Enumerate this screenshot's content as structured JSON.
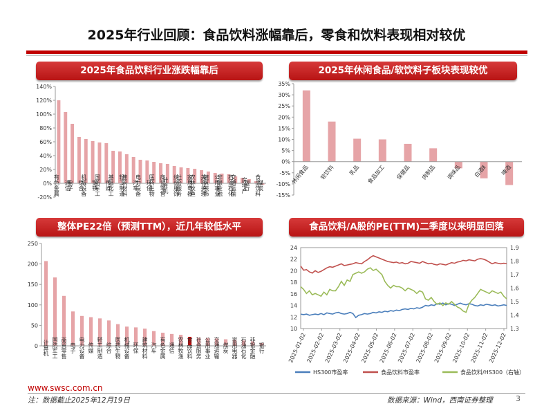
{
  "page": {
    "title": "2025年行业回顾：食品饮料涨幅靠后，零食和饮料表现相对较优",
    "footer_url": "www.swsc.com.cn",
    "footer_note": "注：数据截止2025年12月19日",
    "footer_source": "数据来源：Wind，西南证券整理",
    "page_number": "3"
  },
  "colors": {
    "accent": "#c00000",
    "bar": "#e6a4a7",
    "highlight": "#e00000",
    "hs300": "#4a7ebb",
    "food_pe": "#c0504d",
    "ratio": "#9bbb59"
  },
  "panels": {
    "tl_title": "2025年食品饮料行业涨跌幅靠后",
    "tr_title": "2025年休闲食品/软饮料子板块表现较优",
    "bl_title": "整体PE22倍（预测TTM），近几年较低水平",
    "br_title": "食品饮料/A股的PE(TTM)二季度以来明显回落"
  },
  "chart_data": [
    {
      "type": "bar",
      "ylim": [
        -20,
        140
      ],
      "yticks": [
        "-20%",
        "0%",
        "20%",
        "40%",
        "60%",
        "80%",
        "100%",
        "120%",
        "140%"
      ],
      "y_tick_values": [
        -20,
        0,
        20,
        40,
        60,
        80,
        100,
        120,
        140
      ],
      "categories": [
        "有色金属",
        "通信",
        "电子",
        "综合",
        "机械设备",
        "钢铁",
        "国防军工",
        "传媒",
        "基础化工",
        "轻工制造",
        "建筑材料",
        "汽车",
        "电力设备",
        "环保",
        "医药生物",
        "商贸零售",
        "计算机",
        "纺织服饰",
        "社会服务",
        "家用电器",
        "农林牧渔",
        "美容护理",
        "建筑装饰",
        "公用事业",
        "非银金融",
        "石油石化",
        "交通运输",
        "房地产",
        "银行",
        "食品饮料",
        "煤炭"
      ],
      "values": [
        120,
        103,
        86,
        67,
        64,
        61,
        59,
        58,
        47,
        46,
        42,
        38,
        34,
        33,
        31,
        29,
        28,
        25,
        23,
        22,
        21,
        19,
        17,
        15,
        14,
        13,
        10,
        8,
        6,
        3,
        -2
      ]
    },
    {
      "type": "bar",
      "ylim": [
        -15,
        35
      ],
      "yticks": [
        "-15%",
        "-10%",
        "-5%",
        "0%",
        "5%",
        "10%",
        "15%",
        "20%",
        "25%",
        "30%",
        "35%"
      ],
      "y_tick_values": [
        -15,
        -10,
        -5,
        0,
        5,
        10,
        15,
        20,
        25,
        30,
        35
      ],
      "categories": [
        "休闲食品",
        "软饮料",
        "乳品",
        "食品加工",
        "保健品",
        "肉制品",
        "调味品",
        "白酒Ⅱ",
        "啤酒"
      ],
      "values": [
        32,
        18,
        10.3,
        10,
        8,
        6,
        -3,
        -7.5,
        -10.5
      ]
    },
    {
      "type": "bar",
      "ylim": [
        0,
        250
      ],
      "yticks": [
        "0",
        "50",
        "100",
        "150",
        "200",
        "250"
      ],
      "y_tick_values": [
        0,
        50,
        100,
        150,
        200,
        250
      ],
      "categories": [
        "计算机",
        "国防军工",
        "商贸零售",
        "电子",
        "电力设备",
        "传媒",
        "轻工制造",
        "综合",
        "医药生物",
        "机械设备",
        "环保",
        "建筑材料",
        "汽车",
        "有色金属",
        "通信",
        "农林牧渔",
        "食品饮料",
        "社会服务",
        "公用事业",
        "交通运输",
        "煤炭",
        "家用电器",
        "石油石化",
        "非银金融",
        "银行"
      ],
      "values": [
        207,
        167,
        122,
        84,
        73,
        70,
        67,
        62,
        53,
        47,
        45,
        42,
        36,
        32,
        29,
        27,
        22,
        20,
        19,
        18,
        16,
        15,
        13,
        11,
        7
      ],
      "highlight": "食品饮料"
    },
    {
      "type": "line",
      "x_ticks": [
        "2025-01-02",
        "2025-02-02",
        "2025-03-02",
        "2025-04-02",
        "2025-05-02",
        "2025-06-02",
        "2025-07-02",
        "2025-08-02",
        "2025-09-02",
        "2025-10-02",
        "2025-11-02",
        "2025-12-02"
      ],
      "ylim": [
        10,
        24
      ],
      "yticks": [
        "10",
        "12",
        "14",
        "16",
        "18",
        "20",
        "22",
        "24"
      ],
      "y_tick_values": [
        10,
        12,
        14,
        16,
        18,
        20,
        22,
        24
      ],
      "y2lim": [
        1.3,
        1.9
      ],
      "y2ticks": [
        "1.3",
        "1.4",
        "1.5",
        "1.6",
        "1.7",
        "1.8",
        "1.9"
      ],
      "y2_tick_values": [
        1.3,
        1.4,
        1.5,
        1.6,
        1.7,
        1.8,
        1.9
      ],
      "series": [
        {
          "name": "HS300市盈率",
          "axis": "left",
          "values": [
            12.5,
            12.4,
            12.5,
            12.3,
            12.4,
            12.5,
            12.4,
            12.6,
            12.4,
            12.7,
            12.6,
            12.5,
            12.7,
            12.8,
            12.6,
            12.5,
            12.6,
            12.8,
            12.6,
            11.9,
            12.3,
            12.4,
            12.6,
            12.5,
            12.6,
            12.8,
            12.7,
            12.9,
            12.8,
            13.0,
            12.9,
            13.1,
            13.0,
            13.2,
            13.1,
            13.3,
            13.4,
            13.3,
            13.5,
            13.4,
            13.6,
            13.5,
            13.7,
            14.0,
            13.9,
            14.1,
            14.0,
            14.3,
            14.2,
            14.4,
            14.1,
            14.3,
            14.2,
            14.0,
            14.2,
            14.4,
            14.2,
            14.1,
            14.3,
            14.2,
            14.0,
            13.9,
            14.1,
            14.0,
            14.2,
            14.1,
            14.0,
            14.1,
            13.9,
            14.0,
            14.1,
            14.0
          ]
        },
        {
          "name": "食品饮料市盈率",
          "axis": "left",
          "values": [
            20.8,
            20.1,
            20.2,
            19.8,
            19.6,
            20.0,
            19.7,
            19.9,
            20.2,
            20.5,
            20.7,
            20.6,
            20.8,
            21.0,
            21.2,
            20.9,
            21.0,
            21.1,
            21.2,
            21.4,
            21.3,
            21.2,
            21.6,
            21.9,
            22.3,
            22.6,
            22.4,
            22.2,
            22.0,
            21.8,
            21.6,
            21.5,
            21.4,
            21.5,
            21.3,
            21.4,
            21.2,
            21.3,
            21.6,
            21.5,
            21.4,
            21.3,
            21.6,
            21.4,
            21.2,
            21.3,
            21.1,
            21.0,
            21.2,
            21.1,
            21.0,
            21.2,
            21.4,
            21.3,
            21.5,
            21.6,
            21.8,
            21.7,
            21.9,
            21.8,
            21.7,
            22.0,
            22.1,
            22.0,
            21.8,
            21.5,
            21.2,
            21.4,
            21.3,
            21.2,
            21.3,
            21.2
          ]
        },
        {
          "name": "食品饮料/HS300（右轴）",
          "axis": "right",
          "values": [
            1.61,
            1.59,
            1.56,
            1.58,
            1.55,
            1.56,
            1.55,
            1.54,
            1.57,
            1.55,
            1.59,
            1.58,
            1.58,
            1.61,
            1.65,
            1.62,
            1.66,
            1.65,
            1.7,
            1.71,
            1.72,
            1.71,
            1.72,
            1.74,
            1.75,
            1.73,
            1.74,
            1.72,
            1.7,
            1.65,
            1.62,
            1.6,
            1.62,
            1.61,
            1.61,
            1.6,
            1.58,
            1.6,
            1.59,
            1.58,
            1.56,
            1.58,
            1.57,
            1.52,
            1.51,
            1.53,
            1.5,
            1.48,
            1.49,
            1.47,
            1.49,
            1.48,
            1.5,
            1.48,
            1.46,
            1.45,
            1.43,
            1.42,
            1.48,
            1.51,
            1.53,
            1.56,
            1.59,
            1.58,
            1.57,
            1.56,
            1.58,
            1.57,
            1.56,
            1.57,
            1.54,
            1.52
          ]
        }
      ]
    }
  ]
}
